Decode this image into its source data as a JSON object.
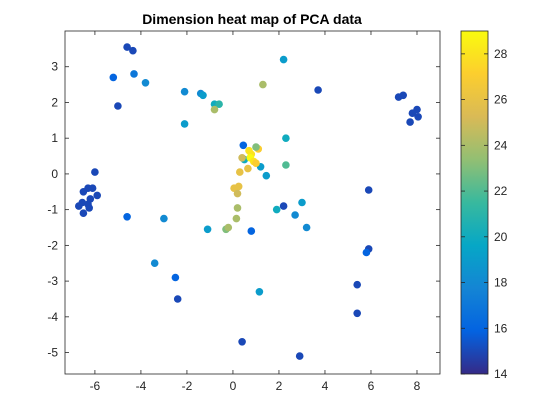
{
  "chart_data": {
    "type": "scatter",
    "title": "Dimension heat map of PCA data",
    "xlabel": "",
    "ylabel": "",
    "xlim": [
      -7.3,
      9
    ],
    "ylim": [
      -5.6,
      4.0
    ],
    "x_ticks": [
      -6,
      -4,
      -2,
      0,
      2,
      4,
      6,
      8
    ],
    "y_ticks": [
      3,
      2,
      1,
      0,
      -1,
      -2,
      -3,
      -4,
      -5
    ],
    "grid": false,
    "colorbar": {
      "range": [
        14,
        29
      ],
      "ticks": [
        14,
        16,
        18,
        20,
        22,
        24,
        26,
        28
      ],
      "colormap": "parula",
      "position": "right"
    },
    "points": [
      {
        "x": -6.1,
        "y": -0.4,
        "c": 15
      },
      {
        "x": -6.3,
        "y": -0.4,
        "c": 15
      },
      {
        "x": -6.5,
        "y": -0.5,
        "c": 15
      },
      {
        "x": -6.2,
        "y": -0.7,
        "c": 15
      },
      {
        "x": -6.3,
        "y": -0.85,
        "c": 15
      },
      {
        "x": -6.55,
        "y": -0.8,
        "c": 15
      },
      {
        "x": -6.7,
        "y": -0.9,
        "c": 15
      },
      {
        "x": -6.5,
        "y": -1.1,
        "c": 15
      },
      {
        "x": -6.25,
        "y": -0.95,
        "c": 15
      },
      {
        "x": -5.9,
        "y": -0.6,
        "c": 15
      },
      {
        "x": -6.0,
        "y": 0.05,
        "c": 15
      },
      {
        "x": -4.6,
        "y": 3.55,
        "c": 15
      },
      {
        "x": -4.35,
        "y": 3.45,
        "c": 15
      },
      {
        "x": -5.2,
        "y": 2.7,
        "c": 16
      },
      {
        "x": -5.0,
        "y": 1.9,
        "c": 15
      },
      {
        "x": -4.3,
        "y": 2.8,
        "c": 17
      },
      {
        "x": -3.8,
        "y": 2.55,
        "c": 18
      },
      {
        "x": -4.6,
        "y": -1.2,
        "c": 16
      },
      {
        "x": -3.4,
        "y": -2.5,
        "c": 18
      },
      {
        "x": -3.0,
        "y": -1.25,
        "c": 18
      },
      {
        "x": -2.5,
        "y": -2.9,
        "c": 16
      },
      {
        "x": -2.4,
        "y": -3.5,
        "c": 15
      },
      {
        "x": -2.1,
        "y": 2.3,
        "c": 18
      },
      {
        "x": -2.1,
        "y": 1.4,
        "c": 19
      },
      {
        "x": -1.4,
        "y": 2.25,
        "c": 18
      },
      {
        "x": -1.3,
        "y": 2.2,
        "c": 19
      },
      {
        "x": -0.8,
        "y": 1.95,
        "c": 20
      },
      {
        "x": -0.6,
        "y": 1.95,
        "c": 21
      },
      {
        "x": -0.8,
        "y": 1.8,
        "c": 24
      },
      {
        "x": -1.1,
        "y": -1.55,
        "c": 19
      },
      {
        "x": -0.3,
        "y": -1.55,
        "c": 23
      },
      {
        "x": -0.2,
        "y": -1.5,
        "c": 24
      },
      {
        "x": 0.15,
        "y": -1.25,
        "c": 24
      },
      {
        "x": 0.4,
        "y": -4.7,
        "c": 15
      },
      {
        "x": 0.8,
        "y": -1.6,
        "c": 16
      },
      {
        "x": 1.15,
        "y": -3.3,
        "c": 19
      },
      {
        "x": 1.3,
        "y": 2.5,
        "c": 24
      },
      {
        "x": 2.2,
        "y": 3.2,
        "c": 19
      },
      {
        "x": 3.7,
        "y": 2.35,
        "c": 15
      },
      {
        "x": 2.3,
        "y": 1.0,
        "c": 20
      },
      {
        "x": 2.3,
        "y": 0.25,
        "c": 22
      },
      {
        "x": 1.9,
        "y": -1.0,
        "c": 20
      },
      {
        "x": 2.2,
        "y": -0.9,
        "c": 15
      },
      {
        "x": 2.7,
        "y": -1.15,
        "c": 18
      },
      {
        "x": 3.0,
        "y": -0.8,
        "c": 19
      },
      {
        "x": 3.2,
        "y": -1.5,
        "c": 18
      },
      {
        "x": 2.9,
        "y": -5.1,
        "c": 15
      },
      {
        "x": 0.45,
        "y": 0.8,
        "c": 16
      },
      {
        "x": 0.5,
        "y": 0.4,
        "c": 20
      },
      {
        "x": 0.4,
        "y": 0.45,
        "c": 25
      },
      {
        "x": 0.7,
        "y": 0.65,
        "c": 28
      },
      {
        "x": 0.8,
        "y": 0.55,
        "c": 28
      },
      {
        "x": 0.75,
        "y": 0.45,
        "c": 29
      },
      {
        "x": 0.9,
        "y": 0.35,
        "c": 28
      },
      {
        "x": 1.1,
        "y": 0.7,
        "c": 27
      },
      {
        "x": 1.0,
        "y": 0.75,
        "c": 23
      },
      {
        "x": 1.2,
        "y": 0.2,
        "c": 19
      },
      {
        "x": 1.45,
        "y": -0.05,
        "c": 19
      },
      {
        "x": 0.65,
        "y": 0.15,
        "c": 26
      },
      {
        "x": 1.0,
        "y": 0.3,
        "c": 27
      },
      {
        "x": 0.3,
        "y": 0.05,
        "c": 26
      },
      {
        "x": 0.25,
        "y": -0.35,
        "c": 26
      },
      {
        "x": 0.05,
        "y": -0.4,
        "c": 26
      },
      {
        "x": 0.2,
        "y": -0.55,
        "c": 25
      },
      {
        "x": 0.2,
        "y": -0.95,
        "c": 24
      },
      {
        "x": 5.9,
        "y": -0.45,
        "c": 15
      },
      {
        "x": 5.9,
        "y": -2.1,
        "c": 15
      },
      {
        "x": 5.8,
        "y": -2.2,
        "c": 16
      },
      {
        "x": 5.4,
        "y": -3.1,
        "c": 15
      },
      {
        "x": 5.4,
        "y": -3.9,
        "c": 15
      },
      {
        "x": 7.2,
        "y": 2.15,
        "c": 15
      },
      {
        "x": 7.4,
        "y": 2.2,
        "c": 15
      },
      {
        "x": 7.7,
        "y": 1.45,
        "c": 15
      },
      {
        "x": 7.8,
        "y": 1.7,
        "c": 15
      },
      {
        "x": 8.0,
        "y": 1.8,
        "c": 15
      },
      {
        "x": 8.05,
        "y": 1.6,
        "c": 15
      }
    ]
  }
}
